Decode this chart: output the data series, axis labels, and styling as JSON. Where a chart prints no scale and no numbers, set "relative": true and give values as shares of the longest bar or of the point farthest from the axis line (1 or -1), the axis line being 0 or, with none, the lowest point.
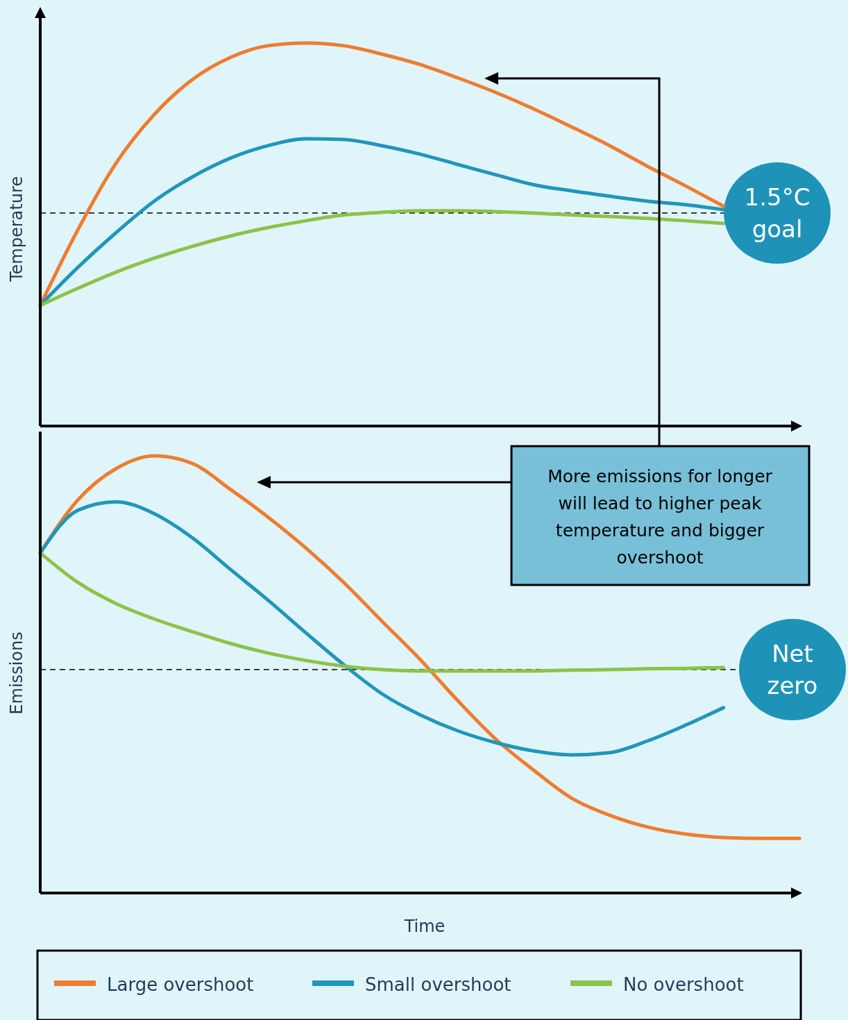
{
  "chart_data": [
    {
      "type": "line",
      "relative": true,
      "ylabel": "Temperature",
      "legend": false,
      "categories": [
        null,
        null,
        null,
        null,
        null,
        null,
        null,
        null,
        null,
        null,
        null,
        null,
        null,
        null,
        null,
        null,
        null,
        null,
        null,
        null,
        null
      ],
      "series": [
        {
          "color": "#ed7d31",
          "values": [
            0.315,
            0.514,
            0.687,
            0.813,
            0.904,
            0.962,
            0.993,
            1,
            0.993,
            0.971,
            0.944,
            0.909,
            0.871,
            0.828,
            0.781,
            0.732,
            0.678,
            0.627,
            0.574,
            null,
            null
          ]
        },
        {
          "color": "#2196b9",
          "values": [
            0.315,
            0.415,
            0.505,
            0.587,
            0.65,
            0.699,
            0.732,
            0.75,
            0.748,
            0.732,
            0.71,
            0.683,
            0.656,
            0.63,
            0.614,
            0.6,
            0.587,
            0.578,
            0.565,
            null,
            null
          ]
        },
        {
          "color": "#8bc34a",
          "values": [
            0.315,
            0.36,
            0.402,
            0.438,
            0.469,
            0.496,
            0.518,
            0.536,
            0.551,
            0.558,
            0.562,
            0.562,
            0.56,
            0.556,
            0.551,
            0.547,
            0.542,
            0.536,
            0.529,
            null,
            null
          ]
        }
      ],
      "ref_lines": [
        {
          "axis": "y",
          "value": 0.556,
          "label": "1.5°C goal",
          "line_style": "dashed"
        }
      ]
    },
    {
      "type": "line",
      "relative": true,
      "ylabel": "Emissions",
      "xlabel": "Time",
      "legend": "bottom",
      "categories": [
        null,
        null,
        null,
        null,
        null,
        null,
        null,
        null,
        null,
        null,
        null,
        null,
        null,
        null,
        null,
        null,
        null,
        null,
        null,
        null,
        null
      ],
      "series": [
        {
          "name": "Large overshoot",
          "color": "#ed7d31",
          "values": [
            0.778,
            0.9,
            0.971,
            1,
            0.983,
            0.924,
            0.86,
            0.789,
            0.71,
            0.622,
            0.535,
            0.44,
            0.352,
            0.281,
            0.217,
            0.178,
            0.151,
            0.135,
            0.127,
            0.125,
            0.125
          ]
        },
        {
          "name": "Small overshoot",
          "color": "#2196b9",
          "values": [
            0.778,
            0.876,
            0.895,
            0.868,
            0.813,
            0.741,
            0.67,
            0.595,
            0.522,
            0.456,
            0.408,
            0.371,
            0.344,
            0.325,
            0.316,
            0.321,
            0.348,
            0.384,
            0.424,
            null,
            null
          ]
        },
        {
          "name": "No overshoot",
          "color": "#8bc34a",
          "values": [
            0.778,
            0.71,
            0.662,
            0.627,
            0.598,
            0.571,
            0.549,
            0.532,
            0.519,
            0.511,
            0.508,
            0.508,
            0.508,
            0.508,
            0.51,
            0.511,
            0.513,
            0.514,
            0.516,
            null,
            null
          ]
        }
      ],
      "ref_lines": [
        {
          "axis": "y",
          "value": 0.511,
          "label": "Net zero",
          "line_style": "dashed"
        }
      ],
      "annotations": [
        "More emissions for longer will lead to higher peak temperature and bigger overshoot"
      ]
    }
  ]
}
